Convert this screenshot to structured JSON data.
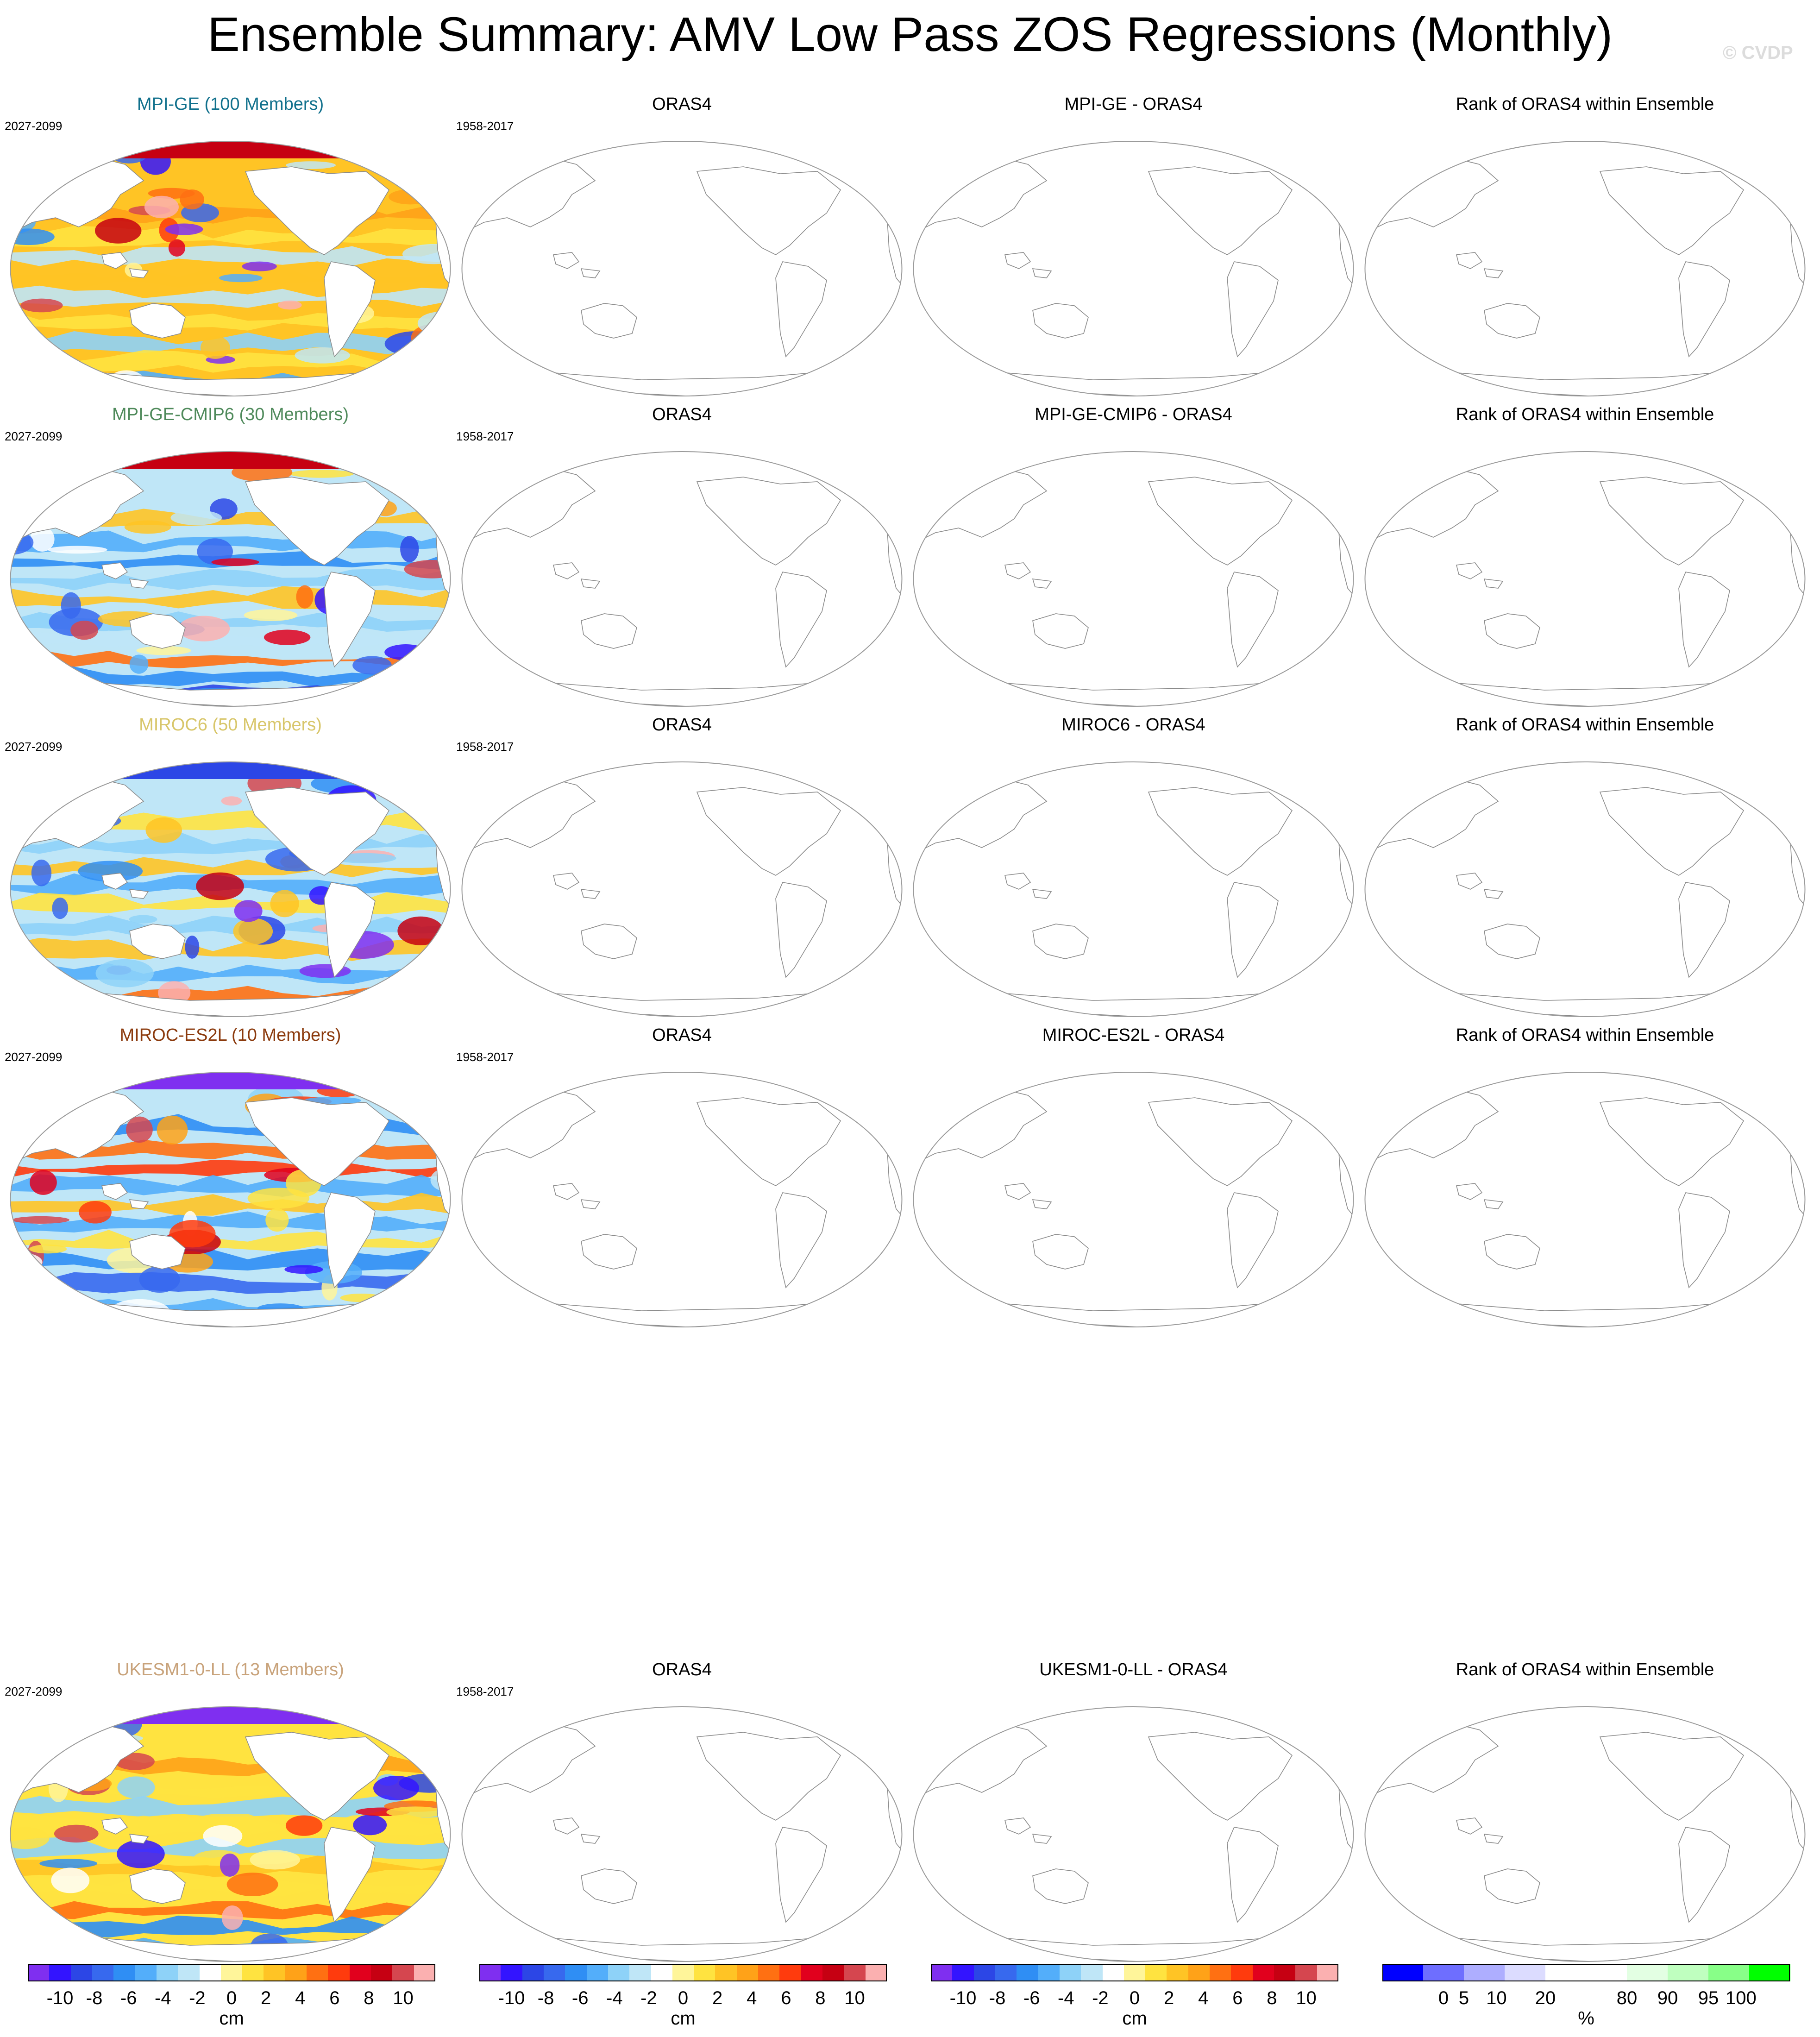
{
  "title": "Ensemble Summary: AMV Low Pass ZOS Regressions (Monthly)",
  "watermark": "© CVDP",
  "colors": {
    "regression": [
      "#7f2ff0",
      "#3314ff",
      "#2c46e6",
      "#3769ee",
      "#2f8ef4",
      "#53aefa",
      "#8ed2f8",
      "#bfe6f7",
      "#ffffff",
      "#fff59a",
      "#ffe340",
      "#ffc425",
      "#ffa218",
      "#ff7012",
      "#ff3b0d",
      "#e1001d",
      "#c60012",
      "#d5464f",
      "#fbb0b0"
    ],
    "rank": [
      "#0000ff",
      "#6e6eff",
      "#aeaeff",
      "#dcdcff",
      "#ffffff",
      "#ffffff",
      "#e3ffe3",
      "#bfffbf",
      "#88ff88",
      "#00ff00"
    ],
    "coast": "#8a8a8a"
  },
  "chart_data": [
    {
      "type": "heatmap",
      "title": "MPI-GE (100 Members)",
      "title_color": "#10708c",
      "period": "2027-2099",
      "pattern": "mpi"
    },
    {
      "type": "heatmap",
      "title": "ORAS4",
      "period": "1958-2017"
    },
    {
      "type": "heatmap",
      "title": "MPI-GE - ORAS4"
    },
    {
      "type": "heatmap",
      "title": "Rank of ORAS4 within Ensemble"
    },
    {
      "type": "heatmap",
      "title": "MPI-GE-CMIP6 (30 Members)",
      "title_color": "#4f8a5b",
      "period": "2027-2099",
      "pattern": "cmip6"
    },
    {
      "type": "heatmap",
      "title": "ORAS4",
      "period": "1958-2017"
    },
    {
      "type": "heatmap",
      "title": "MPI-GE-CMIP6 - ORAS4"
    },
    {
      "type": "heatmap",
      "title": "Rank of ORAS4 within Ensemble"
    },
    {
      "type": "heatmap",
      "title": "MIROC6 (50 Members)",
      "title_color": "#d8c66a",
      "period": "2027-2099",
      "pattern": "miroc6"
    },
    {
      "type": "heatmap",
      "title": "ORAS4",
      "period": "1958-2017"
    },
    {
      "type": "heatmap",
      "title": "MIROC6 - ORAS4"
    },
    {
      "type": "heatmap",
      "title": "Rank of ORAS4 within Ensemble"
    },
    {
      "type": "heatmap",
      "title": "MIROC-ES2L (10 Members)",
      "title_color": "#8b3a0d",
      "period": "2027-2099",
      "pattern": "es2l"
    },
    {
      "type": "heatmap",
      "title": "ORAS4",
      "period": "1958-2017"
    },
    {
      "type": "heatmap",
      "title": "MIROC-ES2L - ORAS4"
    },
    {
      "type": "heatmap",
      "title": "Rank of ORAS4 within Ensemble"
    },
    {
      "type": "heatmap",
      "title": "UKESM1-0-LL (13 Members)",
      "title_color": "#c8a27a",
      "period": "2027-2099",
      "pattern": "ukesm"
    },
    {
      "type": "heatmap",
      "title": "ORAS4",
      "period": "1958-2017"
    },
    {
      "type": "heatmap",
      "title": "UKESM1-0-LL - ORAS4"
    },
    {
      "type": "heatmap",
      "title": "Rank of ORAS4 within Ensemble"
    }
  ],
  "colorbars": [
    {
      "unit": "cm",
      "labels": [
        "-10",
        "-8",
        "-6",
        "-4",
        "-2",
        "0",
        "2",
        "4",
        "6",
        "8",
        "10"
      ]
    },
    {
      "unit": "cm",
      "labels": [
        "-10",
        "-8",
        "-6",
        "-4",
        "-2",
        "0",
        "2",
        "4",
        "6",
        "8",
        "10"
      ]
    },
    {
      "unit": "cm",
      "labels": [
        "-10",
        "-8",
        "-6",
        "-4",
        "-2",
        "0",
        "2",
        "4",
        "6",
        "8",
        "10"
      ]
    },
    {
      "unit": "%",
      "labels": [
        "0",
        "5",
        "10",
        "20",
        "80",
        "90",
        "95",
        "100"
      ]
    }
  ]
}
